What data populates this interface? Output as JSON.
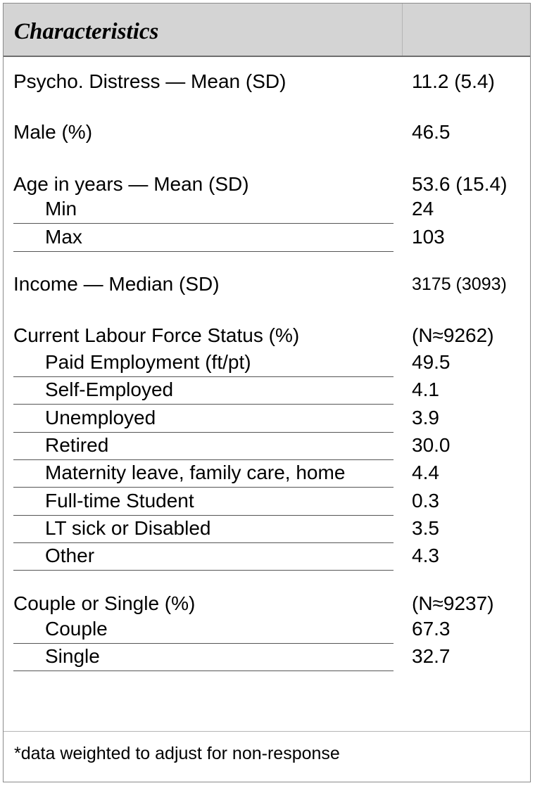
{
  "header": {
    "title": "Characteristics"
  },
  "rows": [
    {
      "label": "Psycho. Distress — Mean (SD)",
      "value": "11.2 (5.4)"
    },
    {
      "label": "Male (%)",
      "value": "46.5"
    },
    {
      "label": "Age in years — Mean (SD)",
      "value": "53.6 (15.4)"
    },
    {
      "label": "Min",
      "value": "24"
    },
    {
      "label": "Max",
      "value": "103"
    },
    {
      "label": "Income — Median (SD)",
      "value": "3175 (3093)"
    },
    {
      "label": "Current Labour Force Status (%)",
      "value": "(N≈9262)"
    },
    {
      "label": "Paid Employment (ft/pt)",
      "value": "49.5"
    },
    {
      "label": "Self-Employed",
      "value": "4.1"
    },
    {
      "label": "Unemployed",
      "value": "3.9"
    },
    {
      "label": "Retired",
      "value": "30.0"
    },
    {
      "label": "Maternity leave, family care, home",
      "value": "4.4"
    },
    {
      "label": "Full-time Student",
      "value": "0.3"
    },
    {
      "label": "LT sick or Disabled",
      "value": "3.5"
    },
    {
      "label": "Other",
      "value": "4.3"
    },
    {
      "label": "Couple or Single (%)",
      "value": "(N≈9237)"
    },
    {
      "label": "Couple",
      "value": "67.3"
    },
    {
      "label": "Single",
      "value": "32.7"
    }
  ],
  "footnote": "*data weighted to adjust for non-response"
}
